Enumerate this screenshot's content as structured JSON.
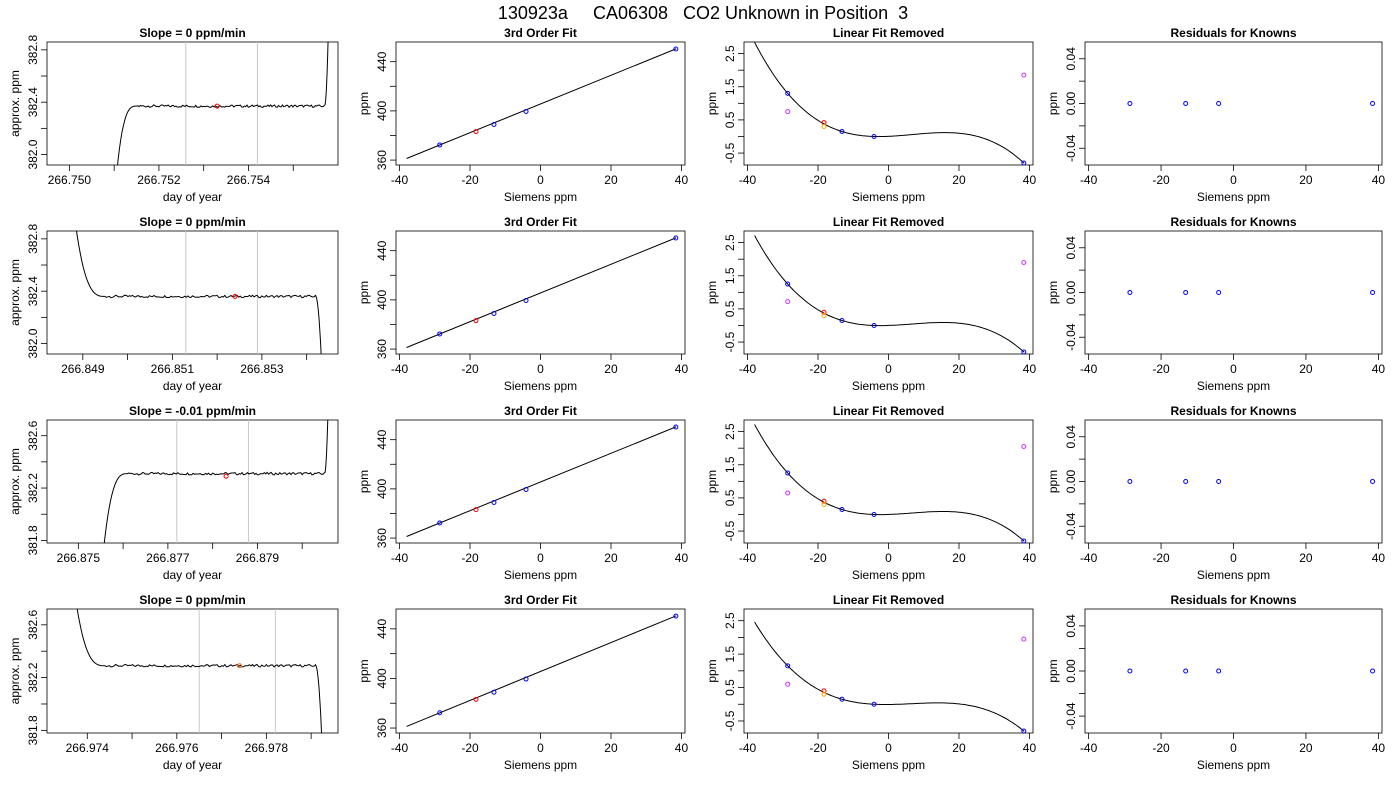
{
  "figure_title": "130923a     CA06308   CO2 Unknown in Position  3",
  "chart_data": [
    {
      "row": 1,
      "kind": "trace",
      "type": "line",
      "title": "Slope =  0  ppm/min",
      "xlabel": "day of year",
      "ylabel": "approx. ppm",
      "xlim": [
        266.7495,
        266.756
      ],
      "ylim": [
        381.92,
        382.86
      ],
      "xticks": [
        "266.750",
        "266.752",
        "266.754"
      ],
      "xtick_values": [
        266.75,
        266.752,
        266.754
      ],
      "yticks": [
        "382.0",
        "382.4",
        "382.8"
      ],
      "ytick_values": [
        382.0,
        382.4,
        382.8
      ],
      "minor_xticks": [
        266.751,
        266.753,
        266.755
      ],
      "minor_yticks": [
        382.2,
        382.6
      ],
      "plateau": 382.37,
      "rise_start": 266.751,
      "rise_end": 266.7515,
      "end_x": 266.7557,
      "end_type": "up",
      "vlines": [
        266.7526,
        266.7542
      ],
      "marker": {
        "x": 266.7533,
        "y": 382.37,
        "color": "#ff0000"
      }
    },
    {
      "row": 1,
      "kind": "fit",
      "type": "line",
      "title": "3rd Order Fit",
      "xlabel": "Siemens ppm",
      "ylabel": "ppm",
      "xlim": [
        -41,
        41
      ],
      "ylim": [
        356,
        456
      ],
      "xticks": [
        "-40",
        "-20",
        "0",
        "20",
        "40"
      ],
      "xtick_values": [
        -40,
        -20,
        0,
        20,
        40
      ],
      "yticks": [
        "360",
        "400",
        "440"
      ],
      "ytick_values": [
        360,
        400,
        440
      ],
      "minor_yticks": [
        380,
        420
      ],
      "line": [
        [
          -38,
          361.3
        ],
        [
          38.5,
          450.5
        ]
      ],
      "points": [
        {
          "x": -28.6,
          "y": 372.3,
          "color": "#0000ff"
        },
        {
          "x": -18.3,
          "y": 383.1,
          "color": "#ff0000"
        },
        {
          "x": -13.2,
          "y": 388.9,
          "color": "#0000ff"
        },
        {
          "x": -4.1,
          "y": 399.5,
          "color": "#0000ff"
        },
        {
          "x": 38.4,
          "y": 450.3,
          "color": "#0000ff"
        }
      ]
    },
    {
      "row": 1,
      "kind": "linres",
      "type": "line",
      "title": "Linear Fit Removed",
      "xlabel": "Siemens ppm",
      "ylabel": "ppm",
      "xlim": [
        -41,
        41
      ],
      "ylim": [
        -0.86,
        2.85
      ],
      "xticks": [
        "-40",
        "-20",
        "0",
        "20",
        "40"
      ],
      "xtick_values": [
        -40,
        -20,
        0,
        20,
        40
      ],
      "yticks": [
        "-0.5",
        "0.5",
        "1.5",
        "2.5"
      ],
      "ytick_values": [
        -0.5,
        0.5,
        1.5,
        2.5
      ],
      "minor_yticks": [
        0,
        1,
        2
      ],
      "curve_x_range": [
        -38,
        38.5
      ],
      "points": [
        {
          "x": -28.6,
          "y": 1.3,
          "color": "#0000ff"
        },
        {
          "x": -28.6,
          "y": 0.75,
          "color": "#cc33ff"
        },
        {
          "x": -18.3,
          "y": 0.42,
          "color": "#ff0000"
        },
        {
          "x": -18.3,
          "y": 0.3,
          "color": "#ffa500"
        },
        {
          "x": -13.2,
          "y": 0.15,
          "color": "#0000ff"
        },
        {
          "x": -4.1,
          "y": 0.0,
          "color": "#0000ff"
        },
        {
          "x": 38.4,
          "y": -0.8,
          "color": "#0000ff"
        },
        {
          "x": 38.4,
          "y": 1.85,
          "color": "#cc33ff"
        }
      ]
    },
    {
      "row": 1,
      "kind": "resid",
      "type": "scatter",
      "title": "Residuals for Knowns",
      "xlabel": "Siemens ppm",
      "ylabel": "ppm",
      "xlim": [
        -41,
        41
      ],
      "ylim": [
        -0.055,
        0.055
      ],
      "xticks": [
        "-40",
        "-20",
        "0",
        "20",
        "40"
      ],
      "xtick_values": [
        -40,
        -20,
        0,
        20,
        40
      ],
      "yticks": [
        "-0.04",
        "0.00",
        "0.04"
      ],
      "ytick_values": [
        -0.04,
        0.0,
        0.04
      ],
      "minor_yticks": [
        -0.02,
        0.02
      ],
      "points": [
        {
          "x": -28.6,
          "y": 0,
          "color": "#0000ff"
        },
        {
          "x": -13.2,
          "y": 0,
          "color": "#0000ff"
        },
        {
          "x": -4.1,
          "y": 0,
          "color": "#0000ff"
        },
        {
          "x": 38.4,
          "y": 0,
          "color": "#0000ff"
        }
      ]
    },
    {
      "row": 2,
      "kind": "trace",
      "type": "line",
      "title": "Slope =  0  ppm/min",
      "xlabel": "day of year",
      "ylabel": "approx. ppm",
      "xlim": [
        266.8482,
        266.8547
      ],
      "ylim": [
        381.92,
        382.86
      ],
      "xticks": [
        "266.849",
        "266.851",
        "266.853"
      ],
      "xtick_values": [
        266.849,
        266.851,
        266.853
      ],
      "yticks": [
        "382.0",
        "382.4",
        "382.8"
      ],
      "ytick_values": [
        382.0,
        382.4,
        382.8
      ],
      "minor_xticks": [
        266.85,
        266.852,
        266.854
      ],
      "minor_yticks": [
        382.2,
        382.6
      ],
      "plateau": 382.36,
      "rise_start": 266.8487,
      "rise_end": 266.8495,
      "end_x": 266.8542,
      "end_type": "down",
      "vlines": [
        266.8513,
        266.8529
      ],
      "marker": {
        "x": 266.8524,
        "y": 382.36,
        "color": "#ff0000"
      }
    },
    {
      "row": 2,
      "kind": "fit",
      "type": "line",
      "title": "3rd Order Fit",
      "xlabel": "Siemens ppm",
      "ylabel": "ppm",
      "xlim": [
        -41,
        41
      ],
      "ylim": [
        356,
        456
      ],
      "xticks": [
        "-40",
        "-20",
        "0",
        "20",
        "40"
      ],
      "xtick_values": [
        -40,
        -20,
        0,
        20,
        40
      ],
      "yticks": [
        "360",
        "400",
        "440"
      ],
      "ytick_values": [
        360,
        400,
        440
      ],
      "minor_yticks": [
        380,
        420
      ],
      "line": [
        [
          -38,
          361.3
        ],
        [
          38.5,
          450.5
        ]
      ],
      "points": [
        {
          "x": -28.6,
          "y": 372.3,
          "color": "#0000ff"
        },
        {
          "x": -18.3,
          "y": 383.1,
          "color": "#ff0000"
        },
        {
          "x": -13.2,
          "y": 388.9,
          "color": "#0000ff"
        },
        {
          "x": -4.1,
          "y": 399.5,
          "color": "#0000ff"
        },
        {
          "x": 38.4,
          "y": 450.3,
          "color": "#0000ff"
        }
      ]
    },
    {
      "row": 2,
      "kind": "linres",
      "type": "line",
      "title": "Linear Fit Removed",
      "xlabel": "Siemens ppm",
      "ylabel": "ppm",
      "xlim": [
        -41,
        41
      ],
      "ylim": [
        -0.86,
        2.85
      ],
      "xticks": [
        "-40",
        "-20",
        "0",
        "20",
        "40"
      ],
      "xtick_values": [
        -40,
        -20,
        0,
        20,
        40
      ],
      "yticks": [
        "-0.5",
        "0.5",
        "1.5",
        "2.5"
      ],
      "ytick_values": [
        -0.5,
        0.5,
        1.5,
        2.5
      ],
      "minor_yticks": [
        0,
        1,
        2
      ],
      "curve_x_range": [
        -38,
        38.5
      ],
      "points": [
        {
          "x": -28.6,
          "y": 1.25,
          "color": "#0000ff"
        },
        {
          "x": -28.6,
          "y": 0.72,
          "color": "#cc33ff"
        },
        {
          "x": -18.3,
          "y": 0.4,
          "color": "#ff0000"
        },
        {
          "x": -18.3,
          "y": 0.3,
          "color": "#ffa500"
        },
        {
          "x": -13.2,
          "y": 0.15,
          "color": "#0000ff"
        },
        {
          "x": -4.1,
          "y": 0.0,
          "color": "#0000ff"
        },
        {
          "x": 38.4,
          "y": -0.8,
          "color": "#0000ff"
        },
        {
          "x": 38.4,
          "y": 1.9,
          "color": "#cc33ff"
        }
      ]
    },
    {
      "row": 2,
      "kind": "resid",
      "type": "scatter",
      "title": "Residuals for Knowns",
      "xlabel": "Siemens ppm",
      "ylabel": "ppm",
      "xlim": [
        -41,
        41
      ],
      "ylim": [
        -0.055,
        0.055
      ],
      "xticks": [
        "-40",
        "-20",
        "0",
        "20",
        "40"
      ],
      "xtick_values": [
        -40,
        -20,
        0,
        20,
        40
      ],
      "yticks": [
        "-0.04",
        "0.00",
        "0.04"
      ],
      "ytick_values": [
        -0.04,
        0.0,
        0.04
      ],
      "minor_yticks": [
        -0.02,
        0.02
      ],
      "points": [
        {
          "x": -28.6,
          "y": 0,
          "color": "#0000ff"
        },
        {
          "x": -13.2,
          "y": 0,
          "color": "#0000ff"
        },
        {
          "x": -4.1,
          "y": 0,
          "color": "#0000ff"
        },
        {
          "x": 38.4,
          "y": 0,
          "color": "#0000ff"
        }
      ]
    },
    {
      "row": 3,
      "kind": "trace",
      "type": "line",
      "title": "Slope =  -0.01  ppm/min",
      "xlabel": "day of year",
      "ylabel": "approx. ppm",
      "xlim": [
        266.8743,
        266.8808
      ],
      "ylim": [
        381.78,
        382.72
      ],
      "xticks": [
        "266.875",
        "266.877",
        "266.879"
      ],
      "xtick_values": [
        266.875,
        266.877,
        266.879
      ],
      "yticks": [
        "381.8",
        "382.2",
        "382.6"
      ],
      "ytick_values": [
        381.8,
        382.2,
        382.6
      ],
      "minor_xticks": [
        266.876,
        266.878,
        266.88
      ],
      "minor_yticks": [
        382.0,
        382.4
      ],
      "plateau": 382.31,
      "rise_start": 266.8755,
      "rise_end": 266.8761,
      "end_x": 266.8805,
      "end_type": "up",
      "vlines": [
        266.8772,
        266.8788
      ],
      "marker": {
        "x": 266.8783,
        "y": 382.29,
        "color": "#ff0000"
      }
    },
    {
      "row": 3,
      "kind": "fit",
      "type": "line",
      "title": "3rd Order Fit",
      "xlabel": "Siemens ppm",
      "ylabel": "ppm",
      "xlim": [
        -41,
        41
      ],
      "ylim": [
        356,
        456
      ],
      "xticks": [
        "-40",
        "-20",
        "0",
        "20",
        "40"
      ],
      "xtick_values": [
        -40,
        -20,
        0,
        20,
        40
      ],
      "yticks": [
        "360",
        "400",
        "440"
      ],
      "ytick_values": [
        360,
        400,
        440
      ],
      "minor_yticks": [
        380,
        420
      ],
      "line": [
        [
          -38,
          361.3
        ],
        [
          38.5,
          450.5
        ]
      ],
      "points": [
        {
          "x": -28.6,
          "y": 372.3,
          "color": "#0000ff"
        },
        {
          "x": -18.3,
          "y": 383.1,
          "color": "#ff0000"
        },
        {
          "x": -13.2,
          "y": 388.9,
          "color": "#0000ff"
        },
        {
          "x": -4.1,
          "y": 399.5,
          "color": "#0000ff"
        },
        {
          "x": 38.4,
          "y": 450.3,
          "color": "#0000ff"
        }
      ]
    },
    {
      "row": 3,
      "kind": "linres",
      "type": "line",
      "title": "Linear Fit Removed",
      "xlabel": "Siemens ppm",
      "ylabel": "ppm",
      "xlim": [
        -41,
        41
      ],
      "ylim": [
        -0.86,
        2.85
      ],
      "xticks": [
        "-40",
        "-20",
        "0",
        "20",
        "40"
      ],
      "xtick_values": [
        -40,
        -20,
        0,
        20,
        40
      ],
      "yticks": [
        "-0.5",
        "0.5",
        "1.5",
        "2.5"
      ],
      "ytick_values": [
        -0.5,
        0.5,
        1.5,
        2.5
      ],
      "minor_yticks": [
        0,
        1,
        2
      ],
      "curve_x_range": [
        -38,
        38.5
      ],
      "points": [
        {
          "x": -28.6,
          "y": 1.25,
          "color": "#0000ff"
        },
        {
          "x": -28.6,
          "y": 0.65,
          "color": "#cc33ff"
        },
        {
          "x": -18.3,
          "y": 0.4,
          "color": "#ff0000"
        },
        {
          "x": -18.3,
          "y": 0.3,
          "color": "#ffa500"
        },
        {
          "x": -13.2,
          "y": 0.15,
          "color": "#0000ff"
        },
        {
          "x": -4.1,
          "y": 0.0,
          "color": "#0000ff"
        },
        {
          "x": 38.4,
          "y": -0.8,
          "color": "#0000ff"
        },
        {
          "x": 38.4,
          "y": 2.05,
          "color": "#cc33ff"
        }
      ]
    },
    {
      "row": 3,
      "kind": "resid",
      "type": "scatter",
      "title": "Residuals for Knowns",
      "xlabel": "Siemens ppm",
      "ylabel": "ppm",
      "xlim": [
        -41,
        41
      ],
      "ylim": [
        -0.055,
        0.055
      ],
      "xticks": [
        "-40",
        "-20",
        "0",
        "20",
        "40"
      ],
      "xtick_values": [
        -40,
        -20,
        0,
        20,
        40
      ],
      "yticks": [
        "-0.04",
        "0.00",
        "0.04"
      ],
      "ytick_values": [
        -0.04,
        0.0,
        0.04
      ],
      "minor_yticks": [
        -0.02,
        0.02
      ],
      "points": [
        {
          "x": -28.6,
          "y": 0,
          "color": "#0000ff"
        },
        {
          "x": -13.2,
          "y": 0,
          "color": "#0000ff"
        },
        {
          "x": -4.1,
          "y": 0,
          "color": "#0000ff"
        },
        {
          "x": 38.4,
          "y": 0,
          "color": "#0000ff"
        }
      ]
    },
    {
      "row": 4,
      "kind": "trace",
      "type": "line",
      "title": "Slope =  0  ppm/min",
      "xlabel": "day of year",
      "ylabel": "approx. ppm",
      "xlim": [
        266.9731,
        266.9796
      ],
      "ylim": [
        381.78,
        382.72
      ],
      "xticks": [
        "266.974",
        "266.976",
        "266.978"
      ],
      "xtick_values": [
        266.974,
        266.976,
        266.978
      ],
      "yticks": [
        "381.8",
        "382.2",
        "382.6"
      ],
      "ytick_values": [
        381.8,
        382.2,
        382.6
      ],
      "minor_xticks": [
        266.975,
        266.977,
        266.979
      ],
      "minor_yticks": [
        382.0,
        382.4
      ],
      "plateau": 382.29,
      "rise_start": 266.9736,
      "rise_end": 266.9744,
      "end_x": 266.9791,
      "end_type": "down",
      "vlines": [
        266.9765,
        266.9782
      ],
      "marker": {
        "x": 266.9774,
        "y": 382.29,
        "color": "#ff6600"
      }
    },
    {
      "row": 4,
      "kind": "fit",
      "type": "line",
      "title": "3rd Order Fit",
      "xlabel": "Siemens ppm",
      "ylabel": "ppm",
      "xlim": [
        -41,
        41
      ],
      "ylim": [
        356,
        456
      ],
      "xticks": [
        "-40",
        "-20",
        "0",
        "20",
        "40"
      ],
      "xtick_values": [
        -40,
        -20,
        0,
        20,
        40
      ],
      "yticks": [
        "360",
        "400",
        "440"
      ],
      "ytick_values": [
        360,
        400,
        440
      ],
      "minor_yticks": [
        380,
        420
      ],
      "line": [
        [
          -38,
          361.3
        ],
        [
          38.5,
          450.5
        ]
      ],
      "points": [
        {
          "x": -28.6,
          "y": 372.3,
          "color": "#0000ff"
        },
        {
          "x": -18.3,
          "y": 383.1,
          "color": "#ff0000"
        },
        {
          "x": -13.2,
          "y": 388.9,
          "color": "#0000ff"
        },
        {
          "x": -4.1,
          "y": 399.5,
          "color": "#0000ff"
        },
        {
          "x": 38.4,
          "y": 450.3,
          "color": "#0000ff"
        }
      ]
    },
    {
      "row": 4,
      "kind": "linres",
      "type": "line",
      "title": "Linear Fit Removed",
      "xlabel": "Siemens ppm",
      "ylabel": "ppm",
      "xlim": [
        -41,
        41
      ],
      "ylim": [
        -0.86,
        2.85
      ],
      "xticks": [
        "-40",
        "-20",
        "0",
        "20",
        "40"
      ],
      "xtick_values": [
        -40,
        -20,
        0,
        20,
        40
      ],
      "yticks": [
        "-0.5",
        "0.5",
        "1.5",
        "2.5"
      ],
      "ytick_values": [
        -0.5,
        0.5,
        1.5,
        2.5
      ],
      "minor_yticks": [
        0,
        1,
        2
      ],
      "curve_x_range": [
        -38,
        38.5
      ],
      "points": [
        {
          "x": -28.6,
          "y": 1.15,
          "color": "#0000ff"
        },
        {
          "x": -28.6,
          "y": 0.6,
          "color": "#cc33ff"
        },
        {
          "x": -18.3,
          "y": 0.4,
          "color": "#ff0000"
        },
        {
          "x": -18.3,
          "y": 0.3,
          "color": "#ffa500"
        },
        {
          "x": -13.2,
          "y": 0.15,
          "color": "#0000ff"
        },
        {
          "x": -4.1,
          "y": 0.0,
          "color": "#0000ff"
        },
        {
          "x": 38.4,
          "y": -0.8,
          "color": "#0000ff"
        },
        {
          "x": 38.4,
          "y": 1.95,
          "color": "#cc33ff"
        }
      ]
    },
    {
      "row": 4,
      "kind": "resid",
      "type": "scatter",
      "title": "Residuals for Knowns",
      "xlabel": "Siemens ppm",
      "ylabel": "ppm",
      "xlim": [
        -41,
        41
      ],
      "ylim": [
        -0.055,
        0.055
      ],
      "xticks": [
        "-40",
        "-20",
        "0",
        "20",
        "40"
      ],
      "xtick_values": [
        -40,
        -20,
        0,
        20,
        40
      ],
      "yticks": [
        "-0.04",
        "0.00",
        "0.04"
      ],
      "ytick_values": [
        -0.04,
        0.0,
        0.04
      ],
      "minor_yticks": [
        -0.02,
        0.02
      ],
      "points": [
        {
          "x": -28.6,
          "y": 0,
          "color": "#0000ff"
        },
        {
          "x": -13.2,
          "y": 0,
          "color": "#0000ff"
        },
        {
          "x": -4.1,
          "y": 0,
          "color": "#0000ff"
        },
        {
          "x": 38.4,
          "y": 0,
          "color": "#0000ff"
        }
      ]
    }
  ]
}
